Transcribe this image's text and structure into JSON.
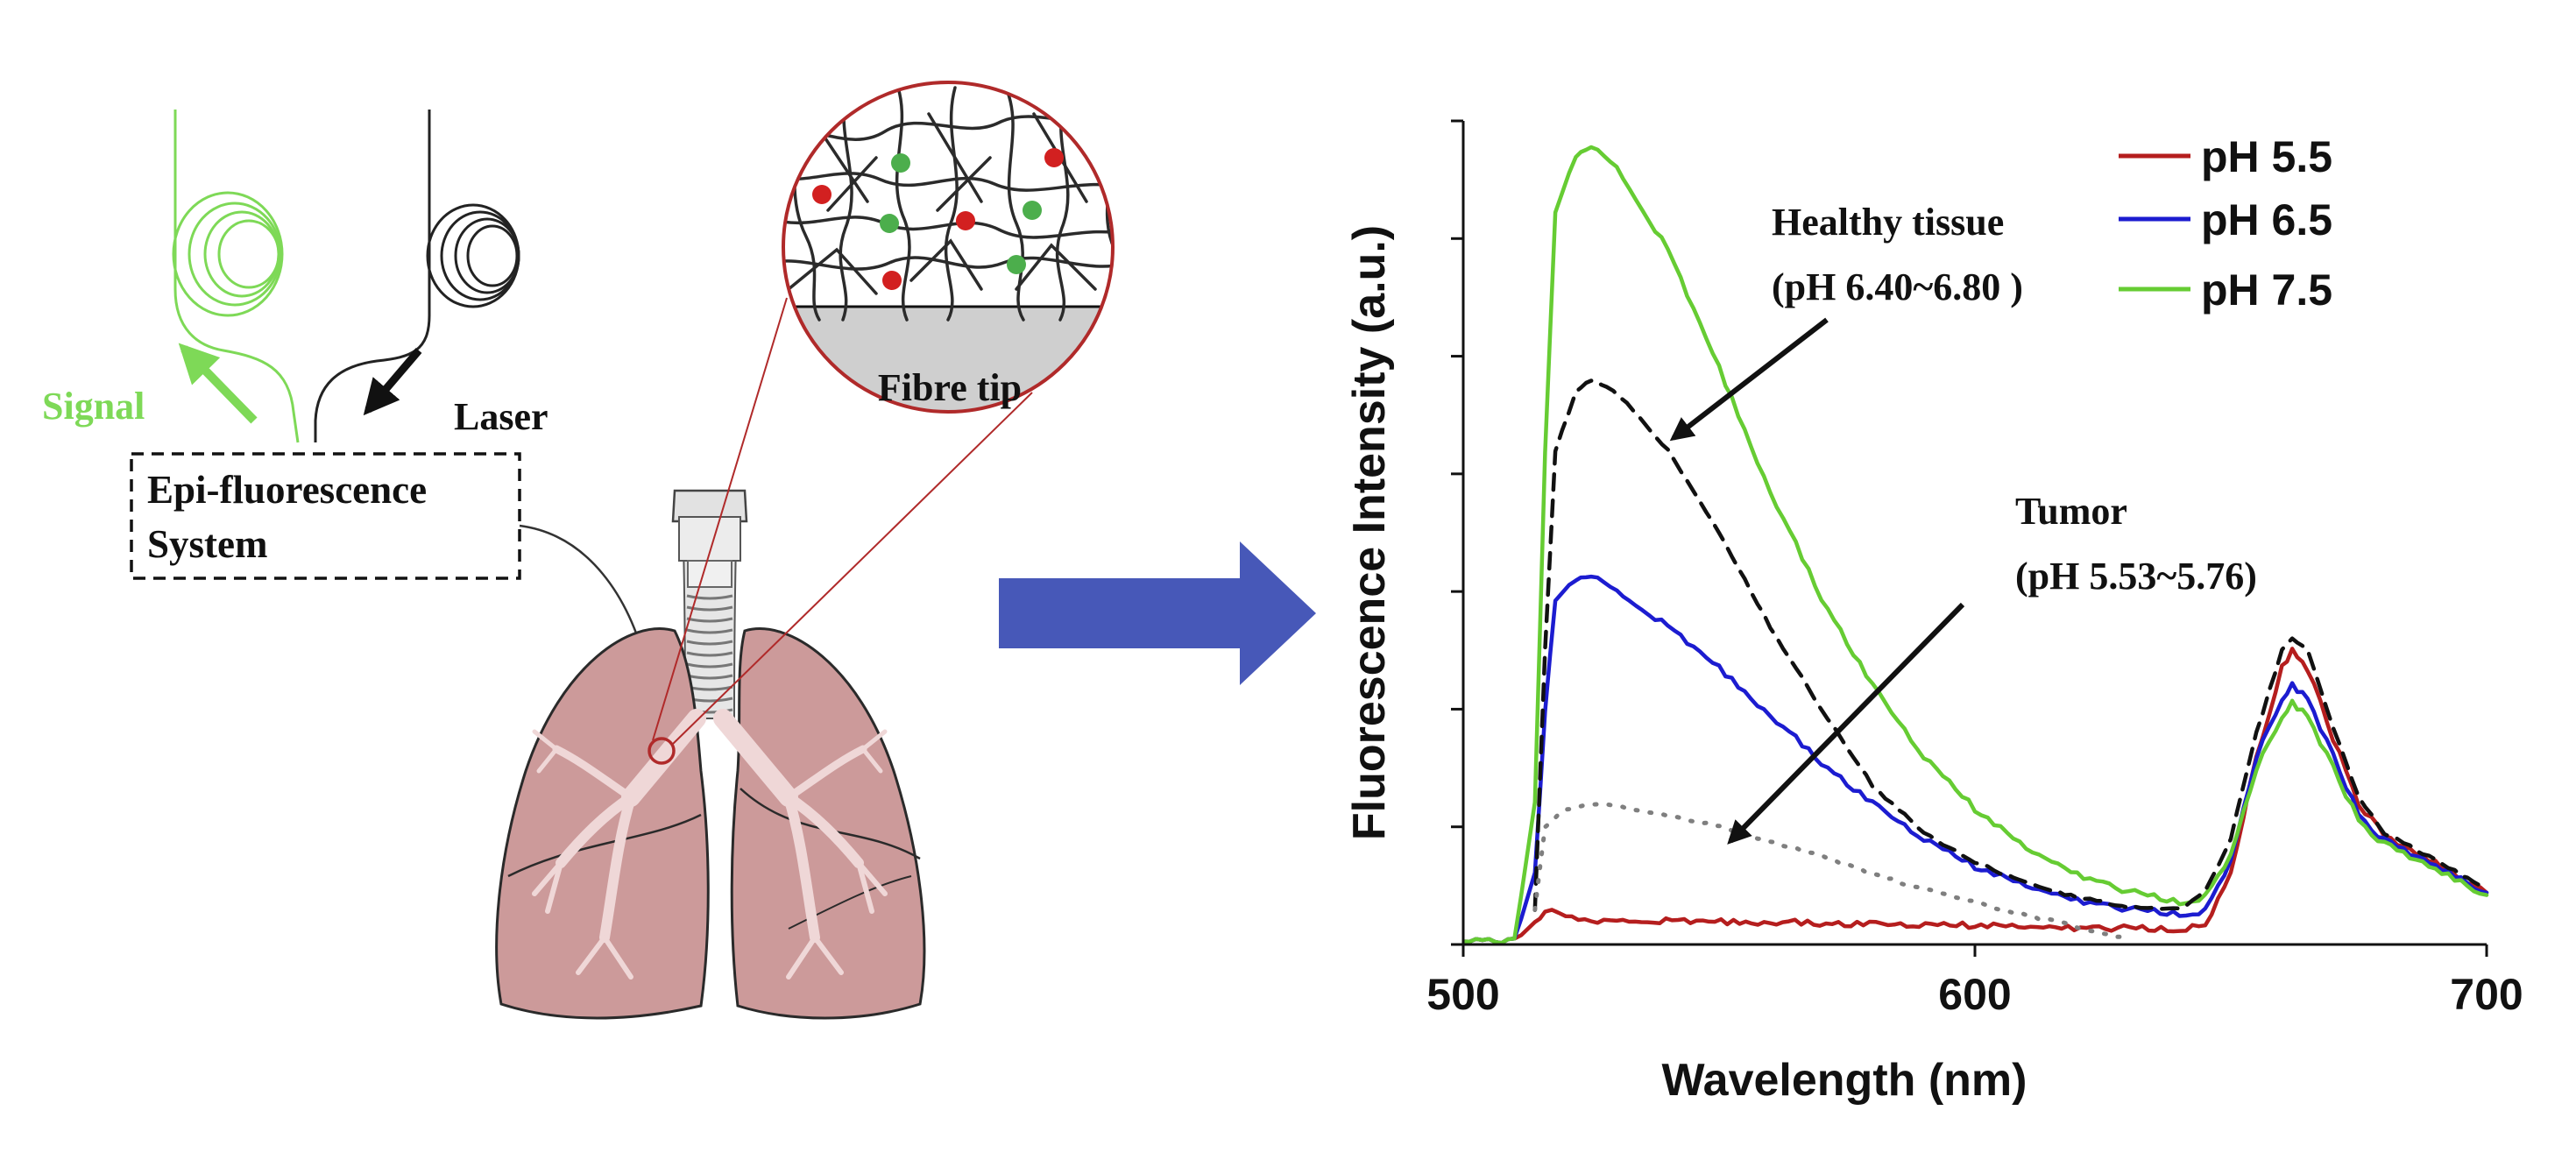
{
  "colors": {
    "signal": "#7ed957",
    "laser": "#222222",
    "lung_fill": "#cc9a9a",
    "lung_stroke": "#2a2a2a",
    "bronchi": "#efd7d7",
    "circle_border": "#b02a2a",
    "fibre_fill": "#cfcfcf",
    "dot_red": "#d22020",
    "dot_green": "#4cae4c",
    "arrow_blue": "#4758b8",
    "ph55": "#b51e1e",
    "ph65": "#1c1cd0",
    "ph75": "#66cc33",
    "healthy": "#111111",
    "tumor": "#7f7f7f"
  },
  "schematic": {
    "signal_label": "Signal",
    "laser_label": "Laser",
    "system_label_line1": "Epi-fluorescence",
    "system_label_line2": "System",
    "fibre_tip_label": "Fibre tip"
  },
  "chart_data": {
    "type": "line",
    "xlabel": "Wavelength (nm)",
    "ylabel": "Fluorescence Intensity (a.u.)",
    "xlim": [
      500,
      700
    ],
    "ylim": [
      0,
      7
    ],
    "x_ticks": [
      500,
      600,
      700
    ],
    "y_tick_count": 8,
    "y_tick_labels_shown": false,
    "legend_position": "top-right",
    "legend": [
      "pH 5.5",
      "pH 6.5",
      "pH 7.5"
    ],
    "annotations": [
      {
        "line1": "Healthy tissue",
        "line2": "(pH 6.40~6.80 )",
        "points_to": "healthy tissue curve"
      },
      {
        "line1": "Tumor",
        "line2": "(pH 5.53~5.76)",
        "points_to": "tumor curve"
      }
    ],
    "series": [
      {
        "name": "pH 5.5",
        "style": "solid",
        "x": [
          500,
          510,
          514,
          516,
          520,
          530,
          560,
          600,
          640,
          645,
          650,
          655,
          660,
          662,
          665,
          670,
          675,
          680,
          690,
          700
        ],
        "y": [
          0.02,
          0.04,
          0.18,
          0.3,
          0.22,
          0.2,
          0.19,
          0.16,
          0.13,
          0.15,
          0.6,
          1.6,
          2.35,
          2.5,
          2.35,
          1.75,
          1.2,
          0.92,
          0.7,
          0.44
        ]
      },
      {
        "name": "pH 6.5",
        "style": "solid",
        "x": [
          500,
          510,
          514,
          516,
          518,
          522,
          525,
          530,
          540,
          550,
          560,
          570,
          580,
          590,
          600,
          610,
          620,
          630,
          640,
          645,
          650,
          655,
          660,
          662,
          665,
          670,
          675,
          680,
          690,
          700
        ],
        "y": [
          0.02,
          0.04,
          0.6,
          2.0,
          2.9,
          3.1,
          3.15,
          3.0,
          2.7,
          2.35,
          1.95,
          1.55,
          1.2,
          0.9,
          0.66,
          0.5,
          0.38,
          0.3,
          0.26,
          0.28,
          0.7,
          1.6,
          2.1,
          2.2,
          2.1,
          1.6,
          1.1,
          0.88,
          0.68,
          0.44
        ]
      },
      {
        "name": "pH 7.5",
        "style": "solid",
        "x": [
          500,
          510,
          514,
          516,
          518,
          522,
          525,
          530,
          540,
          550,
          560,
          570,
          580,
          590,
          600,
          610,
          620,
          630,
          640,
          645,
          650,
          655,
          660,
          662,
          665,
          670,
          675,
          680,
          690,
          700
        ],
        "y": [
          0.02,
          0.04,
          1.2,
          4.2,
          6.2,
          6.7,
          6.8,
          6.6,
          5.9,
          4.9,
          3.85,
          2.95,
          2.2,
          1.6,
          1.15,
          0.82,
          0.6,
          0.45,
          0.36,
          0.4,
          0.75,
          1.5,
          1.95,
          2.05,
          1.95,
          1.5,
          1.05,
          0.85,
          0.65,
          0.42
        ]
      },
      {
        "name": "Healthy tissue",
        "style": "dashed",
        "x": [
          514,
          516,
          518,
          522,
          525,
          528,
          532,
          540,
          550,
          560,
          570,
          580,
          590,
          600,
          610,
          620,
          630,
          640,
          645,
          650,
          655,
          660,
          662,
          665,
          670,
          675,
          680,
          690,
          700
        ],
        "y": [
          0.3,
          2.5,
          4.2,
          4.7,
          4.8,
          4.75,
          4.6,
          4.2,
          3.5,
          2.7,
          2.0,
          1.35,
          0.95,
          0.7,
          0.52,
          0.4,
          0.32,
          0.3,
          0.45,
          0.9,
          1.8,
          2.5,
          2.6,
          2.5,
          1.85,
          1.25,
          0.95,
          0.72,
          0.46
        ]
      },
      {
        "name": "Tumor",
        "style": "dotted",
        "x": [
          514,
          516,
          520,
          525,
          530,
          540,
          550,
          560,
          570,
          580,
          590,
          600,
          610,
          620,
          630
        ],
        "y": [
          0.3,
          1.0,
          1.15,
          1.2,
          1.17,
          1.1,
          1.0,
          0.88,
          0.75,
          0.6,
          0.47,
          0.36,
          0.25,
          0.15,
          0.05
        ]
      }
    ]
  }
}
